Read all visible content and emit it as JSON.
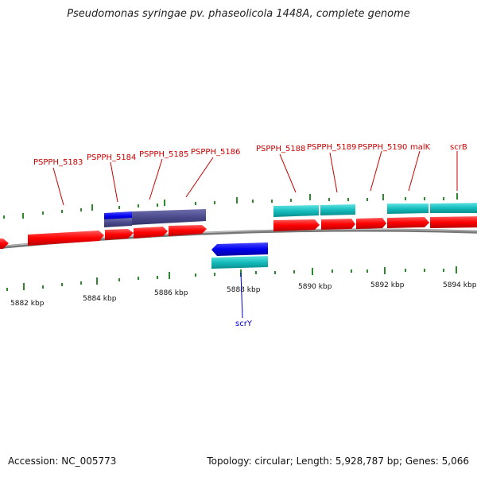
{
  "title": "Pseudomonas syringae pv. phaseolicola 1448A, complete genome",
  "footer": {
    "accession": "Accession: NC_005773",
    "info": "Topology: circular; Length: 5,928,787 bp; Genes: 5,066"
  },
  "colors": {
    "gene_forward": "#ff0000",
    "cds_forward": "#00c0c0",
    "gene_reverse": "#0000ff",
    "cds_overlap": "#4a4a8c",
    "backbone": "#8a8a8a",
    "tick": "#2c8a2c",
    "label_red": "#cc0000",
    "label_blue": "#0000cc"
  },
  "gene_labels_top": [
    "PSPPH_5183",
    "PSPPH_5184",
    "PSPPH_5185",
    "PSPPH_5186",
    "PSPPH_5188",
    "PSPPH_5189",
    "PSPPH_5190",
    "malK",
    "scrB"
  ],
  "gene_labels_bottom": [
    "scrY"
  ],
  "scale_labels": [
    "5882 kbp",
    "5884 kbp",
    "5886 kbp",
    "5888 kbp",
    "5890 kbp",
    "5892 kbp",
    "5894 kbp"
  ]
}
